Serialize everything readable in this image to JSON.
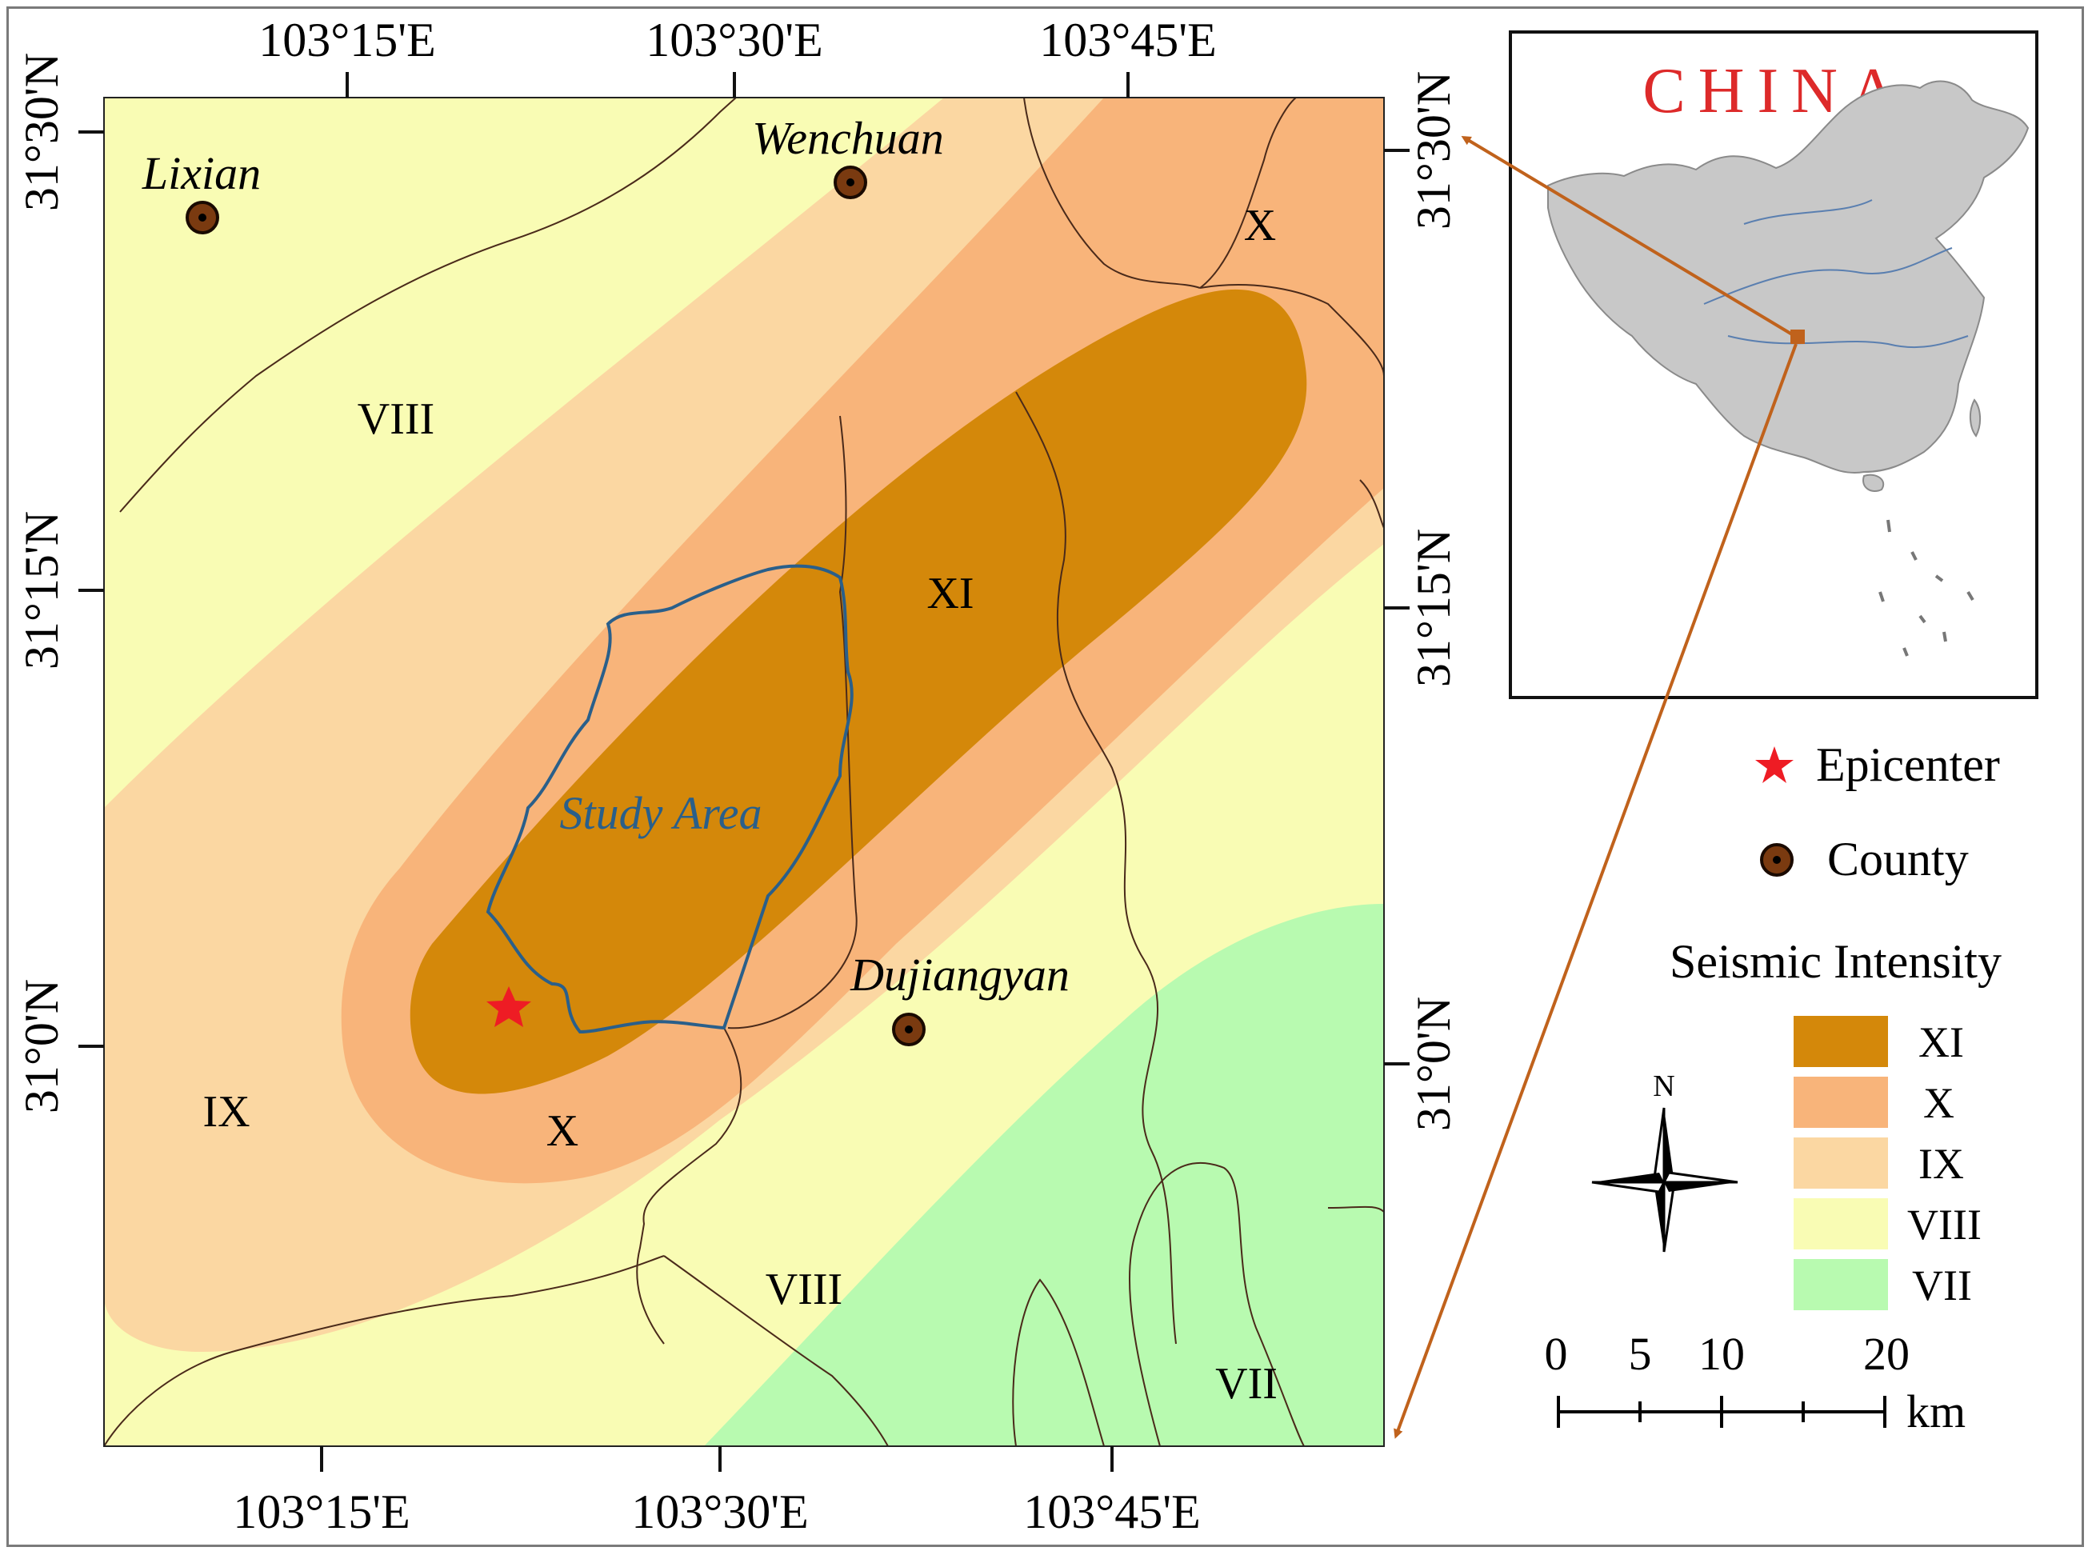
{
  "map": {
    "top_ticks": [
      "103°15'E",
      "103°30'E",
      "103°45'E"
    ],
    "bottom_ticks": [
      "103°15'E",
      "103°30'E",
      "103°45'E"
    ],
    "left_ticks": [
      "31°30'N",
      "31°15'N",
      "31°0'N"
    ],
    "right_ticks": [
      "31°30'N",
      "31°15'N",
      "31°0'N"
    ],
    "counties": [
      "Lixian",
      "Wenchuan",
      "Dujiangyan"
    ],
    "zone_labels": {
      "viii_nw": "VIII",
      "x_ne": "X",
      "xi": "XI",
      "ix_sw": "IX",
      "x_s": "X",
      "viii_s": "VIII",
      "vii_se": "VII"
    },
    "study_area": "Study Area"
  },
  "inset": {
    "title": "CHINA"
  },
  "legend": {
    "epicenter": "Epicenter",
    "county": "County",
    "intensity_title": "Seismic Intensity",
    "classes": [
      {
        "label": "XI",
        "color": "#d4880a"
      },
      {
        "label": "X",
        "color": "#f8b47a"
      },
      {
        "label": "IX",
        "color": "#fbd7a2"
      },
      {
        "label": "VIII",
        "color": "#f9fcb4"
      },
      {
        "label": "VII",
        "color": "#b8fab0"
      }
    ],
    "north": "N",
    "scale_ticks": [
      "0",
      "5",
      "10",
      "20"
    ],
    "scale_unit": "km"
  },
  "colors": {
    "epicenter": "#ee1c24",
    "county_fill": "#7a3a10",
    "study_outline": "#2a5f8a",
    "arrow": "#c0621c",
    "china_title": "#dd2a2a",
    "china_land": "#c8c8c8"
  }
}
